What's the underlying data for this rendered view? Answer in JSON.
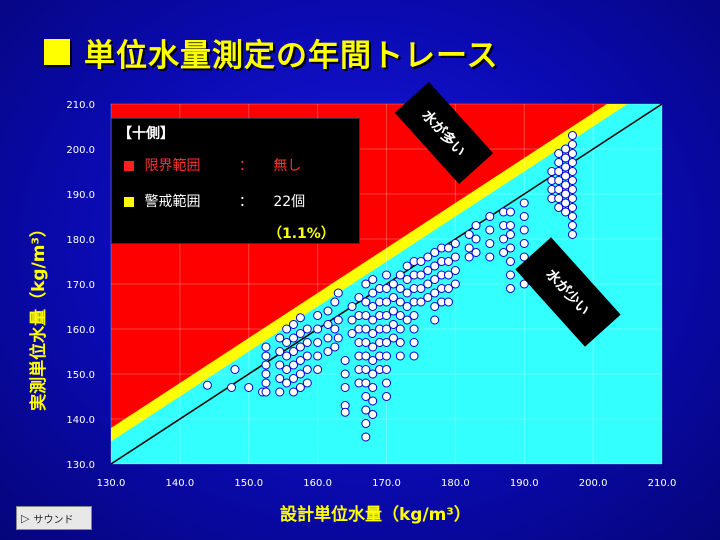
{
  "title": "単位水量測定の年間トレース",
  "ylabel": "実測単位水量（kg/m³）",
  "xlabel": "設計単位水量（kg/m³）",
  "legend": {
    "header": "【十側】",
    "limit_label": "限界範囲",
    "limit_sep": "：",
    "limit_value": "無し",
    "warn_label": "警戒範囲",
    "warn_sep": "：",
    "warn_value": "22個",
    "warn_pct": "（1.1%）"
  },
  "tag_more": "水が多い",
  "tag_less": "水が少い",
  "sound_button": "サウンド",
  "colors": {
    "red": "#ff0000",
    "yellow": "#ffff00",
    "cyan": "#33ffff",
    "point": "#ffffff",
    "point_edge": "#0000cc"
  },
  "chart_data": {
    "type": "scatter",
    "xlim": [
      130,
      210
    ],
    "ylim": [
      130,
      210
    ],
    "x_ticks": [
      "130.0",
      "140.0",
      "150.0",
      "160.0",
      "170.0",
      "180.0",
      "190.0",
      "200.0",
      "210.0"
    ],
    "y_ticks": [
      "130.0",
      "140.0",
      "150.0",
      "160.0",
      "170.0",
      "180.0",
      "190.0",
      "200.0",
      "210.0"
    ],
    "grid": true,
    "reference_line": {
      "from": [
        130,
        130
      ],
      "to": [
        210,
        210
      ]
    },
    "points": [
      [
        144,
        147.5
      ],
      [
        147.5,
        147
      ],
      [
        148,
        151
      ],
      [
        150,
        147
      ],
      [
        152,
        146
      ],
      [
        152.5,
        156
      ],
      [
        152.5,
        154
      ],
      [
        152.5,
        152
      ],
      [
        152.5,
        150
      ],
      [
        152.5,
        148
      ],
      [
        152.5,
        146
      ],
      [
        154.5,
        158
      ],
      [
        154.5,
        155
      ],
      [
        154.5,
        152
      ],
      [
        154.5,
        149
      ],
      [
        154.5,
        146
      ],
      [
        155.5,
        160
      ],
      [
        155.5,
        157
      ],
      [
        155.5,
        154
      ],
      [
        155.5,
        151
      ],
      [
        155.5,
        148
      ],
      [
        156.5,
        161
      ],
      [
        156.5,
        158
      ],
      [
        156.5,
        155
      ],
      [
        156.5,
        152
      ],
      [
        156.5,
        149
      ],
      [
        156.5,
        146
      ],
      [
        157.5,
        162.5
      ],
      [
        157.5,
        159
      ],
      [
        157.5,
        156
      ],
      [
        157.5,
        153
      ],
      [
        157.5,
        150
      ],
      [
        157.5,
        147
      ],
      [
        158.5,
        160
      ],
      [
        158.5,
        157
      ],
      [
        158.5,
        154
      ],
      [
        158.5,
        151
      ],
      [
        158.5,
        148
      ],
      [
        160,
        163
      ],
      [
        160,
        160
      ],
      [
        160,
        157
      ],
      [
        160,
        154
      ],
      [
        160,
        151
      ],
      [
        161.5,
        164
      ],
      [
        161.5,
        161
      ],
      [
        161.5,
        158
      ],
      [
        161.5,
        155
      ],
      [
        162.5,
        166
      ],
      [
        162.5,
        160
      ],
      [
        162.5,
        156
      ],
      [
        163,
        168
      ],
      [
        163,
        162
      ],
      [
        163,
        158
      ],
      [
        164,
        153
      ],
      [
        164,
        150
      ],
      [
        164,
        147
      ],
      [
        164,
        143
      ],
      [
        164,
        141.5
      ],
      [
        165,
        165
      ],
      [
        165,
        162
      ],
      [
        165,
        159
      ],
      [
        166,
        167
      ],
      [
        166,
        163
      ],
      [
        166,
        160
      ],
      [
        166,
        157
      ],
      [
        166,
        154
      ],
      [
        166,
        151
      ],
      [
        166,
        148
      ],
      [
        167,
        170
      ],
      [
        167,
        166
      ],
      [
        167,
        163
      ],
      [
        167,
        160
      ],
      [
        167,
        157
      ],
      [
        167,
        154
      ],
      [
        167,
        151
      ],
      [
        167,
        148
      ],
      [
        167,
        145
      ],
      [
        167,
        142
      ],
      [
        167,
        139
      ],
      [
        167,
        136
      ],
      [
        168,
        171
      ],
      [
        168,
        168
      ],
      [
        168,
        165
      ],
      [
        168,
        162
      ],
      [
        168,
        159
      ],
      [
        168,
        156
      ],
      [
        168,
        153
      ],
      [
        168,
        150
      ],
      [
        168,
        147
      ],
      [
        168,
        144
      ],
      [
        168,
        141
      ],
      [
        169,
        169
      ],
      [
        169,
        166
      ],
      [
        169,
        163
      ],
      [
        169,
        160
      ],
      [
        169,
        157
      ],
      [
        169,
        154
      ],
      [
        169,
        151
      ],
      [
        170,
        172
      ],
      [
        170,
        169
      ],
      [
        170,
        166
      ],
      [
        170,
        163
      ],
      [
        170,
        160
      ],
      [
        170,
        157
      ],
      [
        170,
        154
      ],
      [
        170,
        151
      ],
      [
        170,
        148
      ],
      [
        170,
        145
      ],
      [
        171,
        170
      ],
      [
        171,
        167
      ],
      [
        171,
        164
      ],
      [
        171,
        161
      ],
      [
        171,
        158
      ],
      [
        172,
        172
      ],
      [
        172,
        169
      ],
      [
        172,
        166
      ],
      [
        172,
        163
      ],
      [
        172,
        160
      ],
      [
        172,
        157
      ],
      [
        172,
        154
      ],
      [
        173,
        174
      ],
      [
        173,
        171
      ],
      [
        173,
        168
      ],
      [
        173,
        165
      ],
      [
        173,
        162
      ],
      [
        174,
        175
      ],
      [
        174,
        172
      ],
      [
        174,
        169
      ],
      [
        174,
        166
      ],
      [
        174,
        163
      ],
      [
        174,
        160
      ],
      [
        174,
        157
      ],
      [
        174,
        154
      ],
      [
        175,
        175
      ],
      [
        175,
        172
      ],
      [
        175,
        169
      ],
      [
        175,
        166
      ],
      [
        176,
        176
      ],
      [
        176,
        173
      ],
      [
        176,
        170
      ],
      [
        176,
        167
      ],
      [
        177,
        177
      ],
      [
        177,
        174
      ],
      [
        177,
        171
      ],
      [
        177,
        168
      ],
      [
        177,
        165
      ],
      [
        177,
        162
      ],
      [
        178,
        178
      ],
      [
        178,
        175
      ],
      [
        178,
        172
      ],
      [
        178,
        169
      ],
      [
        178,
        166
      ],
      [
        179,
        178
      ],
      [
        179,
        175
      ],
      [
        179,
        172
      ],
      [
        179,
        169
      ],
      [
        179,
        166
      ],
      [
        180,
        179
      ],
      [
        180,
        176
      ],
      [
        180,
        173
      ],
      [
        180,
        170
      ],
      [
        182,
        181
      ],
      [
        182,
        178
      ],
      [
        182,
        176
      ],
      [
        183,
        183
      ],
      [
        183,
        180
      ],
      [
        183,
        177
      ],
      [
        185,
        185
      ],
      [
        185,
        182
      ],
      [
        185,
        179
      ],
      [
        185,
        176
      ],
      [
        187,
        186
      ],
      [
        187,
        183
      ],
      [
        187,
        180
      ],
      [
        187,
        177
      ],
      [
        188,
        186
      ],
      [
        188,
        183
      ],
      [
        188,
        181
      ],
      [
        188,
        178
      ],
      [
        188,
        175
      ],
      [
        188,
        172
      ],
      [
        188,
        169
      ],
      [
        190,
        188
      ],
      [
        190,
        185
      ],
      [
        190,
        182
      ],
      [
        190,
        179
      ],
      [
        190,
        176
      ],
      [
        190,
        170
      ],
      [
        194,
        195
      ],
      [
        194,
        193
      ],
      [
        194,
        191
      ],
      [
        194,
        189
      ],
      [
        195,
        199
      ],
      [
        195,
        197
      ],
      [
        195,
        195
      ],
      [
        195,
        193
      ],
      [
        195,
        191
      ],
      [
        195,
        189
      ],
      [
        195,
        187
      ],
      [
        196,
        200
      ],
      [
        196,
        198
      ],
      [
        196,
        196
      ],
      [
        196,
        194
      ],
      [
        196,
        192
      ],
      [
        196,
        190
      ],
      [
        196,
        188
      ],
      [
        196,
        186
      ],
      [
        197,
        203
      ],
      [
        197,
        201
      ],
      [
        197,
        199
      ],
      [
        197,
        197
      ],
      [
        197,
        195
      ],
      [
        197,
        193
      ],
      [
        197,
        191
      ],
      [
        197,
        189
      ],
      [
        197,
        187
      ],
      [
        197,
        185
      ],
      [
        197,
        183
      ],
      [
        197,
        181
      ]
    ]
  }
}
